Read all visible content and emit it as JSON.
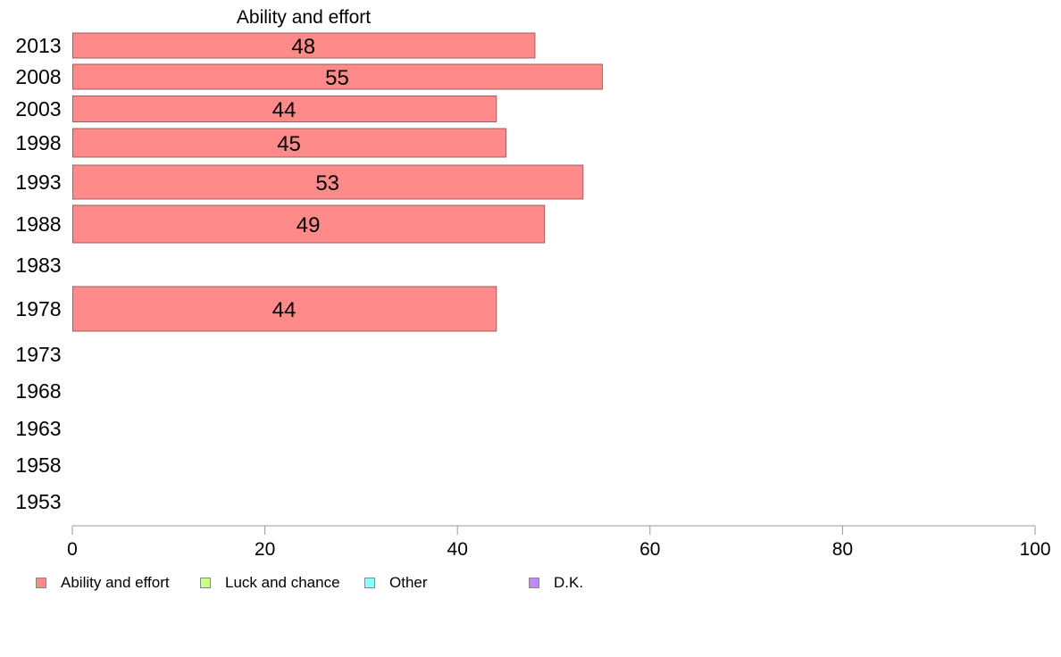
{
  "chart_data": {
    "type": "bar",
    "orientation": "horizontal",
    "title": "Ability and effort",
    "categories": [
      "2013",
      "2008",
      "2003",
      "1998",
      "1993",
      "1988",
      "1983",
      "1978",
      "1973",
      "1968",
      "1963",
      "1958",
      "1953"
    ],
    "series": [
      {
        "name": "Ability and effort",
        "values": [
          48,
          55,
          44,
          45,
          53,
          49,
          null,
          44,
          null,
          null,
          null,
          null,
          null
        ]
      }
    ],
    "data_labels": [
      "48",
      "55",
      "44",
      "45",
      "53",
      "49",
      "",
      "44",
      "",
      "",
      "",
      "",
      ""
    ],
    "xlim": [
      0,
      100
    ],
    "xticks": [
      "0",
      "20",
      "40",
      "60",
      "80",
      "100"
    ],
    "grid": false,
    "legend": {
      "placement": "bottom-left",
      "entries": [
        {
          "label": "Ability and effort",
          "color": "#ff8a8a"
        },
        {
          "label": "Luck and chance",
          "color": "#c8ff8a"
        },
        {
          "label": "Other",
          "color": "#8affff"
        },
        {
          "label": "D.K.",
          "color": "#c08aff"
        }
      ]
    },
    "colors": {
      "bar_fill": "#ff8a8a",
      "bar_stroke": "#9a6060",
      "axis": "#999999"
    }
  }
}
